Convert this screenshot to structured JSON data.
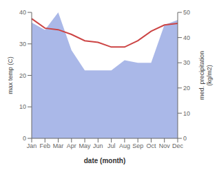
{
  "chart_data": {
    "type": "line",
    "categories": [
      "Jan",
      "Feb",
      "Mar",
      "Apr",
      "May",
      "Jun",
      "Jul",
      "Aug",
      "Sep",
      "Oct",
      "Nov",
      "Dec"
    ],
    "series": [
      {
        "type": "area",
        "color": "#aab8e8",
        "axis": "y2",
        "values": [
          46,
          43,
          50,
          35,
          27,
          27,
          27,
          31,
          30,
          30,
          45,
          47
        ]
      },
      {
        "type": "line",
        "color": "#cc4444",
        "values": [
          38.0,
          35.0,
          34.5,
          33.0,
          31.0,
          30.5,
          29.0,
          29.0,
          31.0,
          34.0,
          36.0,
          36.5
        ]
      }
    ],
    "xlabel": "date (month)",
    "ylabel": "max temp (C)",
    "y2label": "med. precipitation\n(kg/m2)",
    "ylim": [
      0,
      40
    ],
    "yticks": [
      0,
      10,
      20,
      30,
      40
    ],
    "y2lim": [
      0,
      50
    ],
    "y2ticks": [
      0,
      10,
      20,
      30,
      40,
      50
    ],
    "grid": false
  }
}
